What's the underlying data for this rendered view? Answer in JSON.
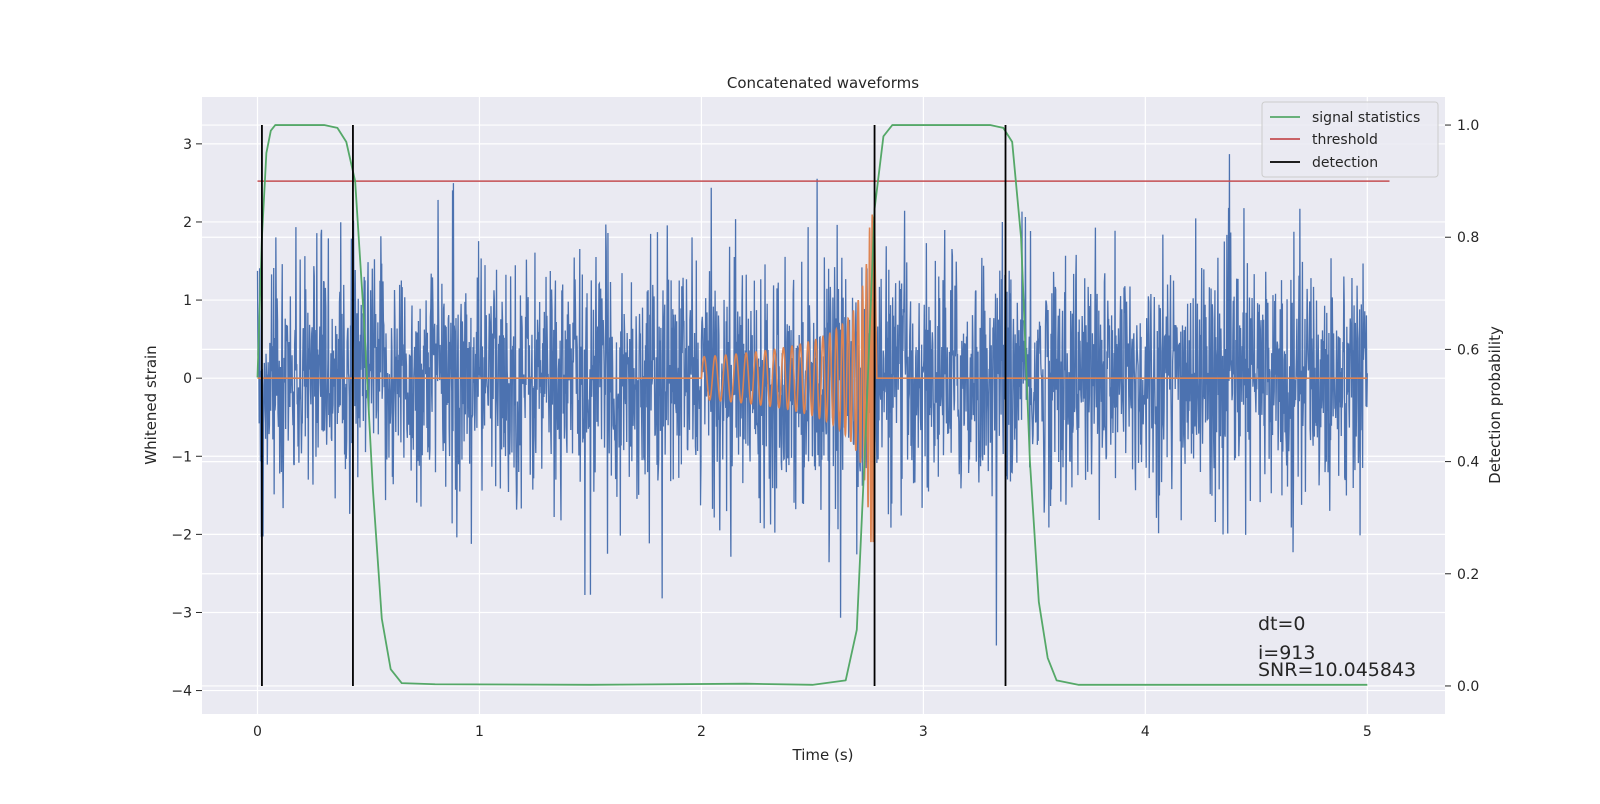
{
  "chart_data": {
    "type": "line",
    "title": "Concatenated waveforms",
    "xlabel": "Time (s)",
    "ylabel": "Whitened strain",
    "y2label": "Detection probability",
    "xlim": [
      -0.25,
      5.35
    ],
    "ylim": [
      -4.3,
      3.6
    ],
    "y2lim": [
      -0.05,
      1.05
    ],
    "x_ticks": [
      0,
      1,
      2,
      3,
      4,
      5
    ],
    "x_tick_labels": [
      "0",
      "1",
      "2",
      "3",
      "4",
      "5"
    ],
    "y_ticks": [
      -4,
      -3,
      -2,
      -1,
      0,
      1,
      2,
      3
    ],
    "y_tick_labels": [
      "−4",
      "−3",
      "−2",
      "−1",
      "0",
      "1",
      "2",
      "3"
    ],
    "y2_ticks": [
      0.0,
      0.2,
      0.4,
      0.6,
      0.8,
      1.0
    ],
    "y2_tick_labels": [
      "0.0",
      "0.2",
      "0.4",
      "0.6",
      "0.8",
      "1.0"
    ],
    "grid": true,
    "legend_position": "top-right",
    "series": [
      {
        "name": "",
        "role": "whitened noise strain",
        "color": "#4C72B0",
        "x_range": [
          0,
          5
        ],
        "typical_range": [
          -1.5,
          1.5
        ],
        "extreme_range": [
          -3.95,
          3.3
        ]
      },
      {
        "name": "",
        "role": "injected chirp waveform",
        "color": "#DD8452",
        "x_range": [
          0,
          5
        ],
        "chirp_start": 2.0,
        "chirp_end": 2.78,
        "peak_amplitude": 2.1
      },
      {
        "name": "signal statistics",
        "axis": "right",
        "color": "#55A868",
        "x": [
          0,
          0.02,
          0.04,
          0.06,
          0.08,
          0.12,
          0.2,
          0.3,
          0.36,
          0.4,
          0.44,
          0.48,
          0.52,
          0.56,
          0.6,
          0.65,
          0.8,
          1.5,
          2.2,
          2.5,
          2.65,
          2.7,
          2.74,
          2.78,
          2.82,
          2.86,
          2.9,
          3.0,
          3.3,
          3.36,
          3.4,
          3.44,
          3.48,
          3.52,
          3.56,
          3.6,
          3.7,
          4.0,
          4.5,
          5.0
        ],
        "y": [
          0.55,
          0.8,
          0.95,
          0.99,
          1.0,
          1.0,
          1.0,
          1.0,
          0.995,
          0.97,
          0.9,
          0.65,
          0.35,
          0.12,
          0.03,
          0.005,
          0.003,
          0.002,
          0.004,
          0.002,
          0.01,
          0.1,
          0.45,
          0.85,
          0.98,
          1.0,
          1.0,
          1.0,
          1.0,
          0.995,
          0.97,
          0.8,
          0.4,
          0.15,
          0.05,
          0.01,
          0.002,
          0.002,
          0.002,
          0.002
        ]
      },
      {
        "name": "threshold",
        "axis": "right",
        "color": "#C44E52",
        "x": [
          0,
          5.1
        ],
        "y": [
          0.9,
          0.9
        ]
      },
      {
        "name": "detection",
        "axis": "right",
        "color": "#000000",
        "type": "vertical-lines",
        "x": [
          0.02,
          0.43,
          2.78,
          3.37
        ],
        "y_range": [
          0.0,
          1.0
        ]
      }
    ],
    "annotations": [
      "dt=0",
      "i=913",
      "SNR=10.045843"
    ]
  }
}
